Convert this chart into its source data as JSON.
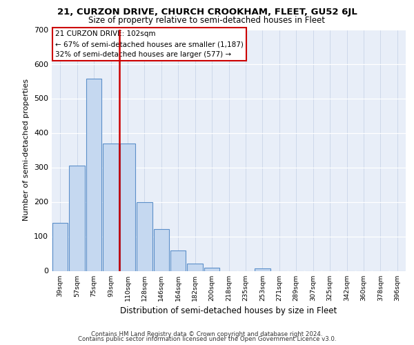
{
  "title1": "21, CURZON DRIVE, CHURCH CROOKHAM, FLEET, GU52 6JL",
  "title2": "Size of property relative to semi-detached houses in Fleet",
  "xlabel": "Distribution of semi-detached houses by size in Fleet",
  "ylabel": "Number of semi-detached properties",
  "bar_categories": [
    "39sqm",
    "57sqm",
    "75sqm",
    "93sqm",
    "110sqm",
    "128sqm",
    "146sqm",
    "164sqm",
    "182sqm",
    "200sqm",
    "218sqm",
    "235sqm",
    "253sqm",
    "271sqm",
    "289sqm",
    "307sqm",
    "325sqm",
    "342sqm",
    "360sqm",
    "378sqm",
    "396sqm"
  ],
  "bar_values": [
    140,
    305,
    557,
    370,
    370,
    200,
    122,
    60,
    22,
    10,
    0,
    0,
    8,
    0,
    0,
    0,
    0,
    0,
    0,
    0,
    0
  ],
  "bar_color": "#c5d8f0",
  "bar_edge_color": "#5b8fc9",
  "property_label": "21 CURZON DRIVE: 102sqm",
  "annotation_line1": "← 67% of semi-detached houses are smaller (1,187)",
  "annotation_line2": "32% of semi-detached houses are larger (577) →",
  "vline_color": "#cc0000",
  "vline_x": 3.5,
  "ylim": [
    0,
    700
  ],
  "yticks": [
    0,
    100,
    200,
    300,
    400,
    500,
    600,
    700
  ],
  "footer1": "Contains HM Land Registry data © Crown copyright and database right 2024.",
  "footer2": "Contains public sector information licensed under the Open Government Licence v3.0.",
  "plot_bg_color": "#e8eef8"
}
